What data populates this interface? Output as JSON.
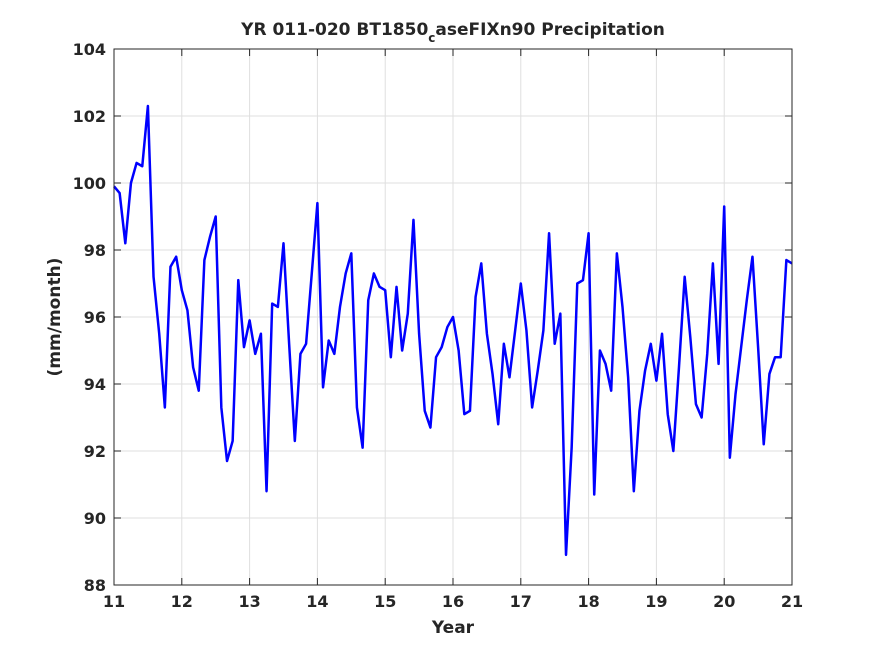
{
  "chart_data": {
    "type": "line",
    "title": {
      "prefix": "YR 011-020 BT1850",
      "subscript": "c",
      "suffix": "aseFIXn90 Precipitation"
    },
    "xlabel": "Year",
    "ylabel": "(mm/month)",
    "xlim": [
      11,
      21
    ],
    "ylim": [
      88,
      104
    ],
    "xticks": [
      11,
      12,
      13,
      14,
      15,
      16,
      17,
      18,
      19,
      20,
      21
    ],
    "yticks": [
      88,
      90,
      92,
      94,
      96,
      98,
      100,
      102,
      104
    ],
    "grid": true,
    "colors": {
      "line": "#0000ff",
      "axis": "#262626",
      "grid": "#dfdfdf"
    },
    "series": [
      {
        "x": [
          11.0,
          11.083,
          11.167,
          11.25,
          11.333,
          11.417,
          11.5,
          11.583,
          11.667,
          11.75,
          11.833,
          11.917,
          12.0,
          12.083,
          12.167,
          12.25,
          12.333,
          12.417,
          12.5,
          12.583,
          12.667,
          12.75,
          12.833,
          12.917,
          13.0,
          13.083,
          13.167,
          13.25,
          13.333,
          13.417,
          13.5,
          13.583,
          13.667,
          13.75,
          13.833,
          13.917,
          14.0,
          14.083,
          14.167,
          14.25,
          14.333,
          14.417,
          14.5,
          14.583,
          14.667,
          14.75,
          14.833,
          14.917,
          15.0,
          15.083,
          15.167,
          15.25,
          15.333,
          15.417,
          15.5,
          15.583,
          15.667,
          15.75,
          15.833,
          15.917,
          16.0,
          16.083,
          16.167,
          16.25,
          16.333,
          16.417,
          16.5,
          16.583,
          16.667,
          16.75,
          16.833,
          16.917,
          17.0,
          17.083,
          17.167,
          17.25,
          17.333,
          17.417,
          17.5,
          17.583,
          17.667,
          17.75,
          17.833,
          17.917,
          18.0,
          18.083,
          18.167,
          18.25,
          18.333,
          18.417,
          18.5,
          18.583,
          18.667,
          18.75,
          18.833,
          18.917,
          19.0,
          19.083,
          19.167,
          19.25,
          19.333,
          19.417,
          19.5,
          19.583,
          19.667,
          19.75,
          19.833,
          19.917,
          20.0,
          20.083,
          20.167,
          20.25,
          20.333,
          20.417,
          20.5,
          20.583,
          20.667,
          20.75,
          20.833,
          20.917,
          21.0
        ],
        "y": [
          99.9,
          99.7,
          98.2,
          100.0,
          100.6,
          100.5,
          102.3,
          97.2,
          95.5,
          93.3,
          97.5,
          97.8,
          96.8,
          96.2,
          94.5,
          93.8,
          97.7,
          98.4,
          99.0,
          93.3,
          91.7,
          92.3,
          97.1,
          95.1,
          95.9,
          94.9,
          95.5,
          90.8,
          96.4,
          96.3,
          98.2,
          95.2,
          92.3,
          94.9,
          95.2,
          97.3,
          99.4,
          93.9,
          95.3,
          94.9,
          96.3,
          97.3,
          97.9,
          93.3,
          92.1,
          96.5,
          97.3,
          96.9,
          96.8,
          94.8,
          96.9,
          95.0,
          96.1,
          98.9,
          95.5,
          93.2,
          92.7,
          94.8,
          95.1,
          95.7,
          96.0,
          95.0,
          93.1,
          93.2,
          96.6,
          97.6,
          95.5,
          94.3,
          92.8,
          95.2,
          94.2,
          95.6,
          97.0,
          95.6,
          93.3,
          94.4,
          95.6,
          98.5,
          95.2,
          96.1,
          88.9,
          92.1,
          97.0,
          97.1,
          98.5,
          90.7,
          95.0,
          94.6,
          93.8,
          97.9,
          96.3,
          94.2,
          90.8,
          93.2,
          94.4,
          95.2,
          94.1,
          95.5,
          93.1,
          92.0,
          94.5,
          97.2,
          95.4,
          93.4,
          93.0,
          94.9,
          97.6,
          94.6,
          99.3,
          91.8,
          93.7,
          95.1,
          96.5,
          97.8,
          95.1,
          92.2,
          94.3,
          94.8,
          94.8,
          97.7,
          97.6
        ]
      }
    ]
  }
}
